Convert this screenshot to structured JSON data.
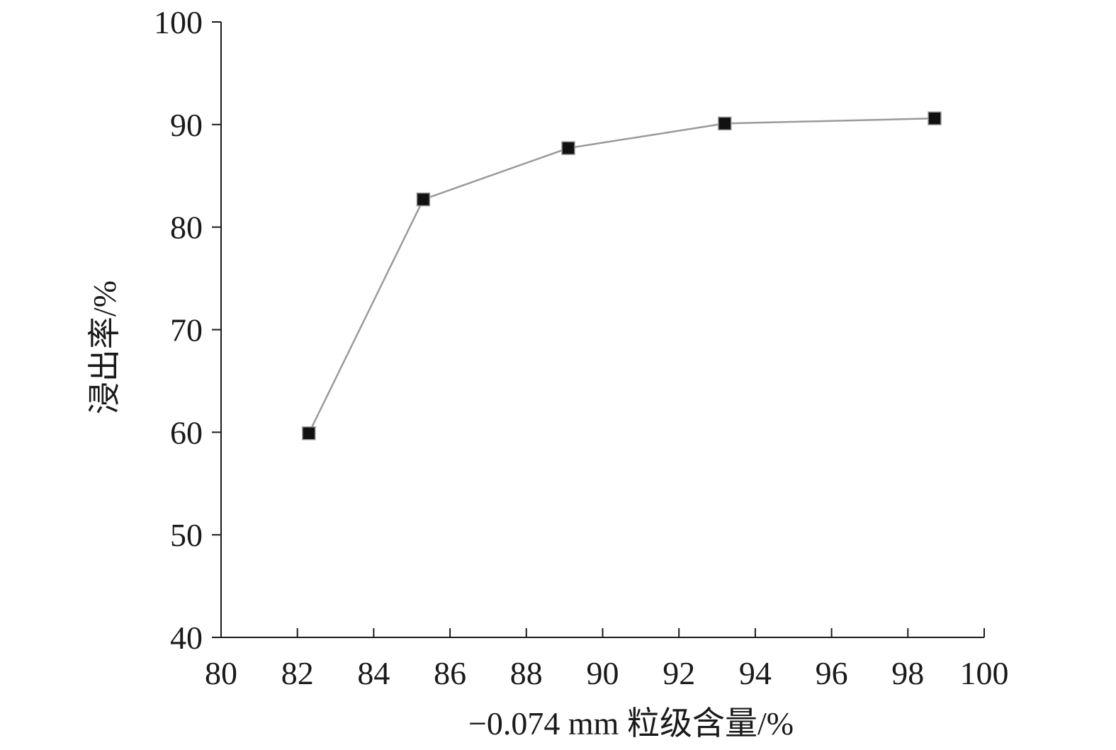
{
  "chart_data": {
    "type": "line",
    "xlabel": "−0.074 mm 粒级含量/%",
    "ylabel": "浸出率/%",
    "xlim": [
      80,
      100
    ],
    "ylim": [
      40,
      100
    ],
    "x_ticks": [
      "80",
      "82",
      "84",
      "86",
      "88",
      "90",
      "92",
      "94",
      "96",
      "98",
      "100"
    ],
    "y_ticks": [
      "40",
      "50",
      "60",
      "70",
      "80",
      "90",
      "100"
    ],
    "grid": false,
    "series": [
      {
        "x": [
          82.3,
          85.3,
          89.1,
          93.2,
          98.7
        ],
        "y": [
          59.9,
          82.7,
          87.7,
          90.1,
          90.6
        ],
        "marker": "square",
        "color": "#111111",
        "line_color": "#9a9a9a"
      }
    ]
  }
}
